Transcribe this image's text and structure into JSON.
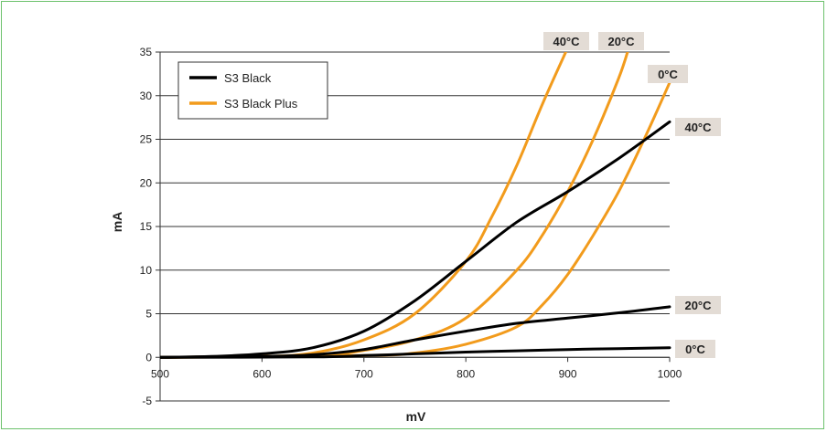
{
  "chart_data": {
    "type": "line",
    "xlabel": "mV",
    "ylabel": "mA",
    "xlim": [
      500,
      1000
    ],
    "ylim": [
      -5,
      35
    ],
    "xticks": [
      500,
      600,
      700,
      800,
      900,
      1000
    ],
    "yticks": [
      -5,
      0,
      5,
      10,
      15,
      20,
      25,
      30,
      35
    ],
    "grid": "horizontal",
    "legend": {
      "placement": "top-left",
      "entries": [
        {
          "label": "S3 Black",
          "color": "#000000"
        },
        {
          "label": "S3 Black Plus",
          "color": "#f29b1c"
        }
      ]
    },
    "series": [
      {
        "label": "40°C",
        "color": "#000000",
        "x": [
          500,
          550,
          600,
          650,
          700,
          750,
          800,
          850,
          900,
          950,
          1000
        ],
        "y": [
          0,
          0.1,
          0.4,
          1.1,
          3.0,
          6.5,
          11.0,
          15.5,
          19.0,
          22.8,
          27.0
        ]
      },
      {
        "label": "20°C",
        "color": "#000000",
        "x": [
          500,
          600,
          650,
          700,
          750,
          800,
          850,
          900,
          950,
          1000
        ],
        "y": [
          0,
          0.1,
          0.3,
          0.9,
          2.0,
          3.0,
          3.9,
          4.5,
          5.1,
          5.8
        ]
      },
      {
        "label": "0°C",
        "color": "#000000",
        "x": [
          500,
          650,
          700,
          750,
          800,
          850,
          900,
          950,
          1000
        ],
        "y": [
          0,
          0.05,
          0.2,
          0.4,
          0.6,
          0.75,
          0.9,
          1.0,
          1.1
        ]
      },
      {
        "label": "40°C",
        "color": "#f29b1c",
        "x": [
          500,
          600,
          650,
          700,
          750,
          800,
          825,
          850,
          875,
          900
        ],
        "y": [
          0,
          0.1,
          0.5,
          2.0,
          5.0,
          11.0,
          16.0,
          22.0,
          29.0,
          35.5
        ]
      },
      {
        "label": "20°C",
        "color": "#f29b1c",
        "x": [
          500,
          650,
          700,
          750,
          800,
          850,
          875,
          900,
          925,
          950,
          960
        ],
        "y": [
          0,
          0.2,
          0.8,
          2.0,
          4.5,
          10.0,
          14.0,
          19.0,
          25.0,
          32.0,
          35.5
        ]
      },
      {
        "label": "0°C",
        "color": "#f29b1c",
        "x": [
          500,
          700,
          750,
          800,
          850,
          875,
          900,
          925,
          950,
          975,
          1000
        ],
        "y": [
          0,
          0.2,
          0.5,
          1.5,
          3.5,
          6.0,
          9.5,
          14.0,
          19.0,
          25.0,
          31.5
        ]
      }
    ]
  }
}
